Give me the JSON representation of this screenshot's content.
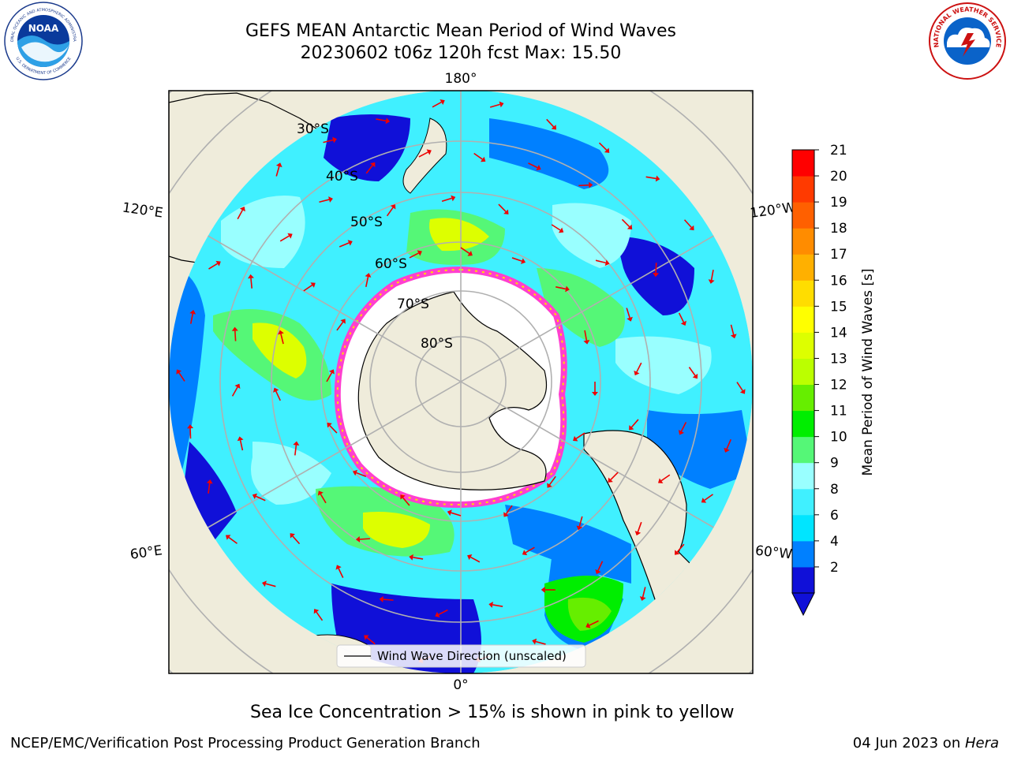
{
  "header": {
    "title_line1": "GEFS MEAN Antarctic Mean Period of Wind Waves",
    "title_line2": "20230602 t06z 120h fcst   Max: 15.50"
  },
  "logos": {
    "noaa_text": "NOAA",
    "noaa_ring_top": "NATIONAL OCEANIC AND ATMOSPHERIC ADMINISTRATION",
    "noaa_ring_bottom": "U.S. DEPARTMENT OF COMMERCE",
    "nws_ring": "NATIONAL WEATHER SERVICE"
  },
  "map": {
    "projection": "south-polar-stereographic",
    "longitude_labels": [
      "180°",
      "120°E",
      "120°W",
      "60°E",
      "60°W",
      "0°"
    ],
    "latitude_labels": [
      "30°S",
      "40°S",
      "50°S",
      "60°S",
      "70°S",
      "80°S"
    ],
    "legend_label": "Wind Wave Direction (unscaled)",
    "colors": {
      "land": "#efecdb",
      "ice_free_ocean_hole": "#ffffff",
      "sea_ice_edge": "#ff3fcf",
      "arrows": "#ee0000",
      "grid": "#b0b0b0"
    }
  },
  "colorbar": {
    "label": "Mean Period of Wind Waves [s]",
    "ticks": [
      "21",
      "20",
      "19",
      "18",
      "17",
      "16",
      "15",
      "14",
      "13",
      "12",
      "11",
      "10",
      "9",
      "8",
      "6",
      "4",
      "2"
    ],
    "bins_bottom_to_top": [
      {
        "range": "<2",
        "color": "#1010d8"
      },
      {
        "range": "2-4",
        "color": "#0080ff"
      },
      {
        "range": "4-6",
        "color": "#00e5ff"
      },
      {
        "range": "6-8",
        "color": "#40f0ff"
      },
      {
        "range": "8-9",
        "color": "#99ffff"
      },
      {
        "range": "9-10",
        "color": "#55f777"
      },
      {
        "range": "10-11",
        "color": "#00ee00"
      },
      {
        "range": "11-12",
        "color": "#66ee00"
      },
      {
        "range": "12-13",
        "color": "#bbff00"
      },
      {
        "range": "13-14",
        "color": "#ddff00"
      },
      {
        "range": "14-15",
        "color": "#ffff00"
      },
      {
        "range": "15-16",
        "color": "#ffdd00"
      },
      {
        "range": "16-17",
        "color": "#ffb000"
      },
      {
        "range": "17-18",
        "color": "#ff8c00"
      },
      {
        "range": "18-19",
        "color": "#ff6000"
      },
      {
        "range": "19-20",
        "color": "#ff3a00"
      },
      {
        "range": "20-21",
        "color": "#ff0000"
      }
    ]
  },
  "caption": "Sea Ice Concentration > 15% is shown in pink to yellow",
  "footer": {
    "left": "NCEP/EMC/Verification Post Processing Product Generation Branch",
    "date": "04 Jun 2023 on ",
    "host": "Hera"
  }
}
